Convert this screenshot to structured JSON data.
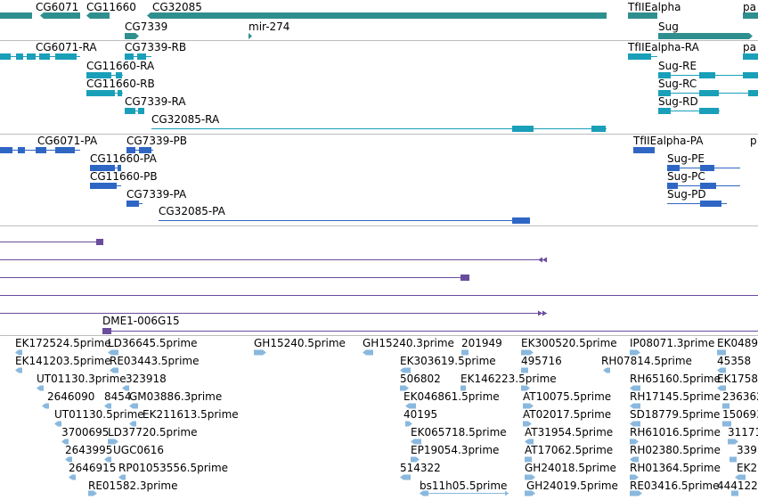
{
  "colors": {
    "gene": "#2f8f8f",
    "transcript": "#1a9fb9",
    "protein": "#2f66c4",
    "alignment": "#6a4c9c",
    "est": "#8ab8de",
    "divider": "#bdbdbd"
  },
  "gene_track": {
    "labels": [
      "CG6071",
      "CG11660",
      "CG32085",
      "TfIIEalpha",
      "pa",
      "CG7339",
      "mir-274",
      "Sug"
    ]
  },
  "transcript_track": {
    "labels": [
      "CG6071-RA",
      "CG7339-RB",
      "TfIIEalpha-RA",
      "pa",
      "CG11660-RA",
      "Sug-RE",
      "CG11660-RB",
      "Sug-RC",
      "CG7339-RA",
      "Sug-RD",
      "CG32085-RA"
    ]
  },
  "protein_track": {
    "labels": [
      "CG6071-PA",
      "CG7339-PB",
      "TfIIEalpha-PA",
      "p",
      "CG11660-PA",
      "Sug-PE",
      "CG11660-PB",
      "Sug-PC",
      "CG7339-PA",
      "Sug-PD",
      "CG32085-PA"
    ]
  },
  "alignment_track": {
    "labels": [
      "DME1-006G15"
    ]
  },
  "est_track": {
    "labels": [
      "EK172524.5prime",
      "LD36645.5prime",
      "GH15240.5prime",
      "GH15240.3prime",
      "201949",
      "EK300520.5prime",
      "IP08071.3prime",
      "EK0489",
      "EK141203.5prime",
      "RE03443.5prime",
      "EK303619.5prime",
      "RH07814.5prime",
      "45358",
      "UT01130.3prime",
      "323918",
      "506802",
      "EK146223.5prime",
      "495716",
      "RH65160.5prime",
      "EK1758",
      "2646090",
      "8454",
      "GM03886.3prime",
      "EK046861.5prime",
      "AT10075.5prime",
      "RH17145.5prime",
      "236362",
      "UT01130.5prime",
      "EK211613.5prime",
      "40195",
      "AT02017.5prime",
      "SD18779.5prime",
      "150693",
      "3700695",
      "LD37720.5prime",
      "EK065718.5prime",
      "AT31954.5prime",
      "RH61016.5prime",
      "31171",
      "2643995",
      "UGC0616",
      "EP19054.3prime",
      "AT17062.5prime",
      "RH02380.5prime",
      "339",
      "2646915",
      "RP01053556.5prime",
      "514322",
      "GH24018.5prime",
      "RH01364.5prime",
      "EK2",
      "RE01582.3prime",
      "bs11h05.5prime",
      "GH24019.5prime",
      "RE03416.5prime",
      "444122"
    ]
  }
}
